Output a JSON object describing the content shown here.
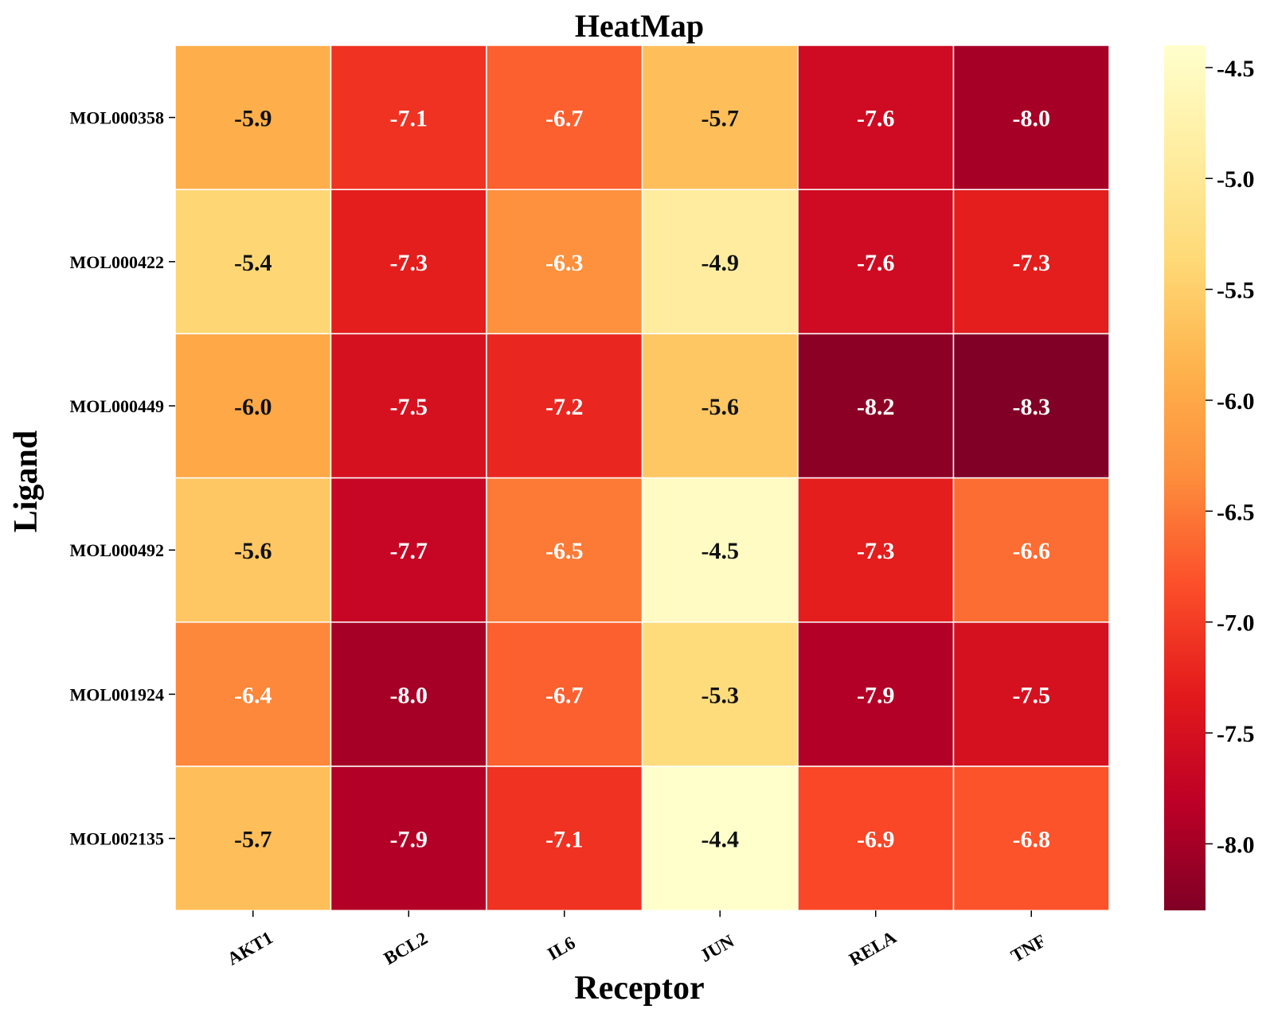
{
  "chart_data": {
    "type": "heatmap",
    "title": "HeatMap",
    "xlabel": "Receptor",
    "ylabel": "Ligand",
    "columns": [
      "AKT1",
      "BCL2",
      "IL6",
      "JUN",
      "RELA",
      "TNF"
    ],
    "rows": [
      "MOL000358",
      "MOL000422",
      "MOL000449",
      "MOL000492",
      "MOL001924",
      "MOL002135"
    ],
    "values": [
      [
        -5.9,
        -7.1,
        -6.7,
        -5.7,
        -7.6,
        -8.0
      ],
      [
        -5.4,
        -7.3,
        -6.3,
        -4.9,
        -7.6,
        -7.3
      ],
      [
        -6.0,
        -7.5,
        -7.2,
        -5.6,
        -8.2,
        -8.3
      ],
      [
        -5.6,
        -7.7,
        -6.5,
        -4.5,
        -7.3,
        -6.6
      ],
      [
        -6.4,
        -8.0,
        -6.7,
        -5.3,
        -7.9,
        -7.5
      ],
      [
        -5.7,
        -7.9,
        -7.1,
        -4.4,
        -6.9,
        -6.8
      ]
    ],
    "cell_labels": [
      [
        "-5.9",
        "-7.1",
        "-6.7",
        "-5.7",
        "-7.6",
        "-8.0"
      ],
      [
        "-5.4",
        "-7.3",
        "-6.3",
        "-4.9",
        "-7.6",
        "-7.3"
      ],
      [
        "-6.0",
        "-7.5",
        "-7.2",
        "-5.6",
        "-8.2",
        "-8.3"
      ],
      [
        "-5.6",
        "-7.7",
        "-6.5",
        "-4.5",
        "-7.3",
        "-6.6"
      ],
      [
        "-6.4",
        "-8.0",
        "-6.7",
        "-5.3",
        "-7.9",
        "-7.5"
      ],
      [
        "-5.7",
        "-7.9",
        "-7.1",
        "-4.4",
        "-6.9",
        "-6.8"
      ]
    ],
    "colorbar": {
      "vmin": -8.3,
      "vmax": -4.4,
      "ticks": [
        -4.5,
        -5.0,
        -5.5,
        -6.0,
        -6.5,
        -7.0,
        -7.5,
        -8.0
      ],
      "tick_labels": [
        "-4.5",
        "-5.0",
        "-5.5",
        "-6.0",
        "-6.5",
        "-7.0",
        "-7.5",
        "-8.0"
      ],
      "colormap": "YlOrRd",
      "colormap_stops": [
        "#ffffcc",
        "#ffeda0",
        "#fed976",
        "#feb24c",
        "#fd8d3c",
        "#fc4e2a",
        "#e31a1c",
        "#bd0026",
        "#800026"
      ]
    },
    "text_color_light": "#ffffff",
    "text_color_dark": "#111111",
    "grid_line_color": "#ffffff"
  }
}
